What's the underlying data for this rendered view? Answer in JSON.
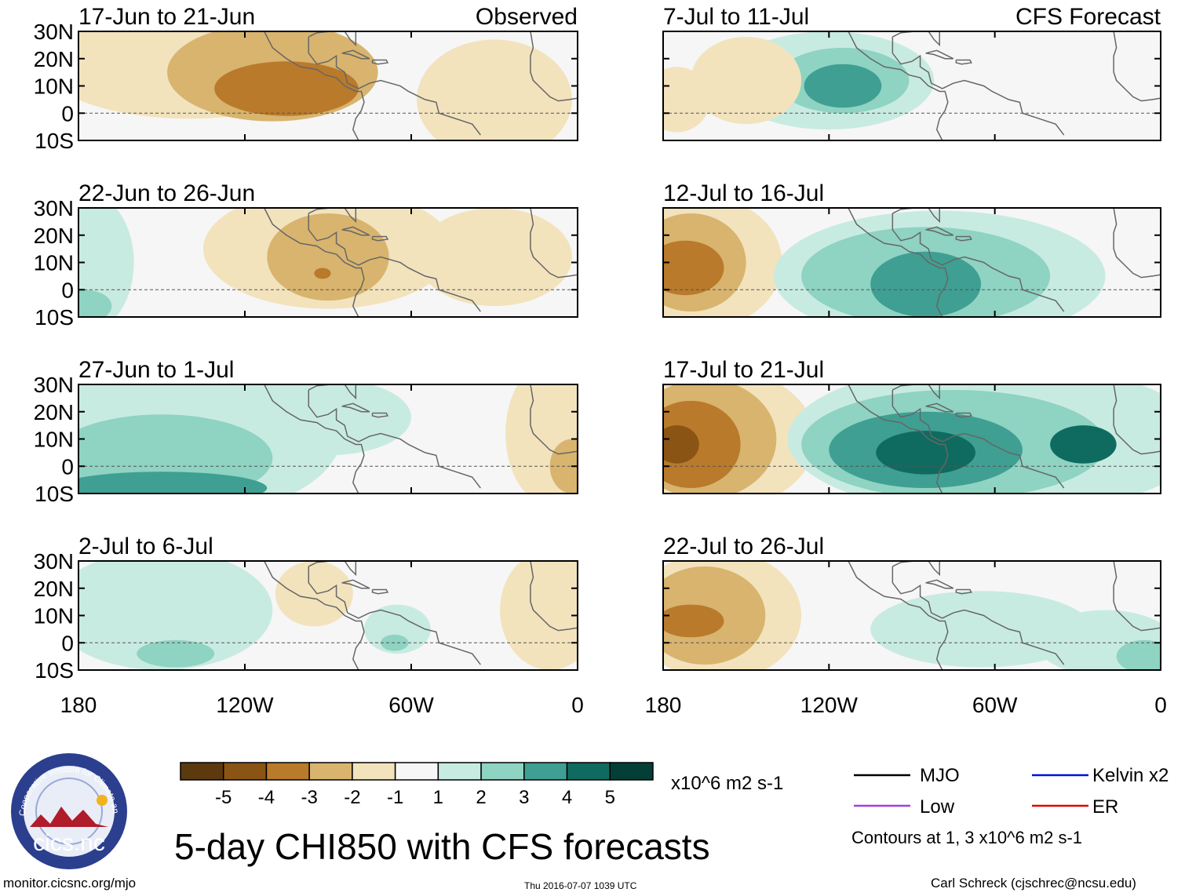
{
  "chart_data": {
    "type": "heatmap",
    "title": "5-day CHI850 with CFS forecasts",
    "variable": "CHI850",
    "units": "x10^6 m2 s-1",
    "lat_ticks": [
      "30N",
      "20N",
      "10N",
      "0",
      "10S"
    ],
    "lon_ticks": [
      "180",
      "120W",
      "60W",
      "0"
    ],
    "lat_range": [
      -10,
      30
    ],
    "lon_range": [
      -180,
      0
    ],
    "colorbar": {
      "levels": [
        -5,
        -4,
        -3,
        -2,
        -1,
        1,
        2,
        3,
        4,
        5
      ],
      "level_labels": [
        "-5",
        "-4",
        "-3",
        "-2",
        "-1",
        "1",
        "2",
        "3",
        "4",
        "5"
      ],
      "colors": [
        "#5c3a0e",
        "#8a5414",
        "#b97a2b",
        "#d8b46e",
        "#f2e3bd",
        "#f6f6f6",
        "#c8ebe1",
        "#8fd3c2",
        "#3f9f92",
        "#0f6b60",
        "#033f37"
      ]
    },
    "contours": {
      "note": "Contours at 1, 3 x10^6 m2 s-1",
      "legend": [
        {
          "label": "MJO",
          "color": "#000000"
        },
        {
          "label": "Kelvin x2",
          "color": "#0010e0"
        },
        {
          "label": "Low",
          "color": "#a040e0"
        },
        {
          "label": "ER",
          "color": "#e00000"
        }
      ]
    },
    "panels": [
      {
        "label": "17-Jun to 21-Jun",
        "tag": "Observed",
        "blobs": [
          {
            "lon": -140,
            "lat": 20,
            "rlon": 55,
            "rlat": 22,
            "v": -1
          },
          {
            "lon": -110,
            "lat": 15,
            "rlon": 38,
            "rlat": 18,
            "v": -2
          },
          {
            "lon": -105,
            "lat": 9,
            "rlon": 26,
            "rlat": 10,
            "v": -3
          },
          {
            "lon": -95,
            "lat": 25,
            "rlon": 12,
            "rlat": 6,
            "v": -2
          },
          {
            "lon": -30,
            "lat": 5,
            "rlon": 28,
            "rlat": 22,
            "v": -1
          }
        ]
      },
      {
        "label": "22-Jun to 26-Jun",
        "blobs": [
          {
            "lon": -90,
            "lat": 15,
            "rlon": 45,
            "rlat": 22,
            "v": -1
          },
          {
            "lon": -90,
            "lat": 12,
            "rlon": 22,
            "rlat": 16,
            "v": -2
          },
          {
            "lon": -92,
            "lat": 6,
            "rlon": 3,
            "rlat": 2,
            "v": -3
          },
          {
            "lon": -30,
            "lat": 12,
            "rlon": 28,
            "rlat": 18,
            "v": -1
          },
          {
            "lon": -178,
            "lat": 10,
            "rlon": 18,
            "rlat": 26,
            "v": 1
          },
          {
            "lon": -178,
            "lat": -6,
            "rlon": 10,
            "rlat": 6,
            "v": 2
          }
        ]
      },
      {
        "label": "27-Jun to 1-Jul",
        "blobs": [
          {
            "lon": -140,
            "lat": 12,
            "rlon": 55,
            "rlat": 30,
            "v": 1
          },
          {
            "lon": -90,
            "lat": 18,
            "rlon": 30,
            "rlat": 14,
            "v": 1
          },
          {
            "lon": -150,
            "lat": 3,
            "rlon": 40,
            "rlat": 16,
            "v": 2
          },
          {
            "lon": -150,
            "lat": -8,
            "rlon": 38,
            "rlat": 6,
            "v": 3
          },
          {
            "lon": -10,
            "lat": 12,
            "rlon": 16,
            "rlat": 26,
            "v": -1
          },
          {
            "lon": -2,
            "lat": 0,
            "rlon": 8,
            "rlat": 10,
            "v": -2
          }
        ]
      },
      {
        "label": "2-Jul to 6-Jul",
        "blobs": [
          {
            "lon": -150,
            "lat": 12,
            "rlon": 40,
            "rlat": 22,
            "v": 1
          },
          {
            "lon": -145,
            "lat": -4,
            "rlon": 14,
            "rlat": 5,
            "v": 2
          },
          {
            "lon": -95,
            "lat": 18,
            "rlon": 14,
            "rlat": 12,
            "v": -1
          },
          {
            "lon": -65,
            "lat": 5,
            "rlon": 12,
            "rlat": 9,
            "v": 1
          },
          {
            "lon": -66,
            "lat": 0,
            "rlon": 5,
            "rlat": 3,
            "v": 2
          },
          {
            "lon": -10,
            "lat": 12,
            "rlon": 18,
            "rlat": 22,
            "v": -1
          }
        ]
      },
      {
        "label": "7-Jul to 11-Jul",
        "tag": "CFS Forecast",
        "blobs": [
          {
            "lon": -175,
            "lat": 5,
            "rlon": 12,
            "rlat": 12,
            "v": -1
          },
          {
            "lon": -120,
            "lat": 12,
            "rlon": 38,
            "rlat": 18,
            "v": 1
          },
          {
            "lon": -115,
            "lat": 12,
            "rlon": 24,
            "rlat": 12,
            "v": 2
          },
          {
            "lon": -115,
            "lat": 10,
            "rlon": 14,
            "rlat": 8,
            "v": 3
          },
          {
            "lon": -150,
            "lat": 12,
            "rlon": 20,
            "rlat": 16,
            "v": -1
          }
        ]
      },
      {
        "label": "12-Jul to 16-Jul",
        "blobs": [
          {
            "lon": -165,
            "lat": 10,
            "rlon": 28,
            "rlat": 24,
            "v": -1
          },
          {
            "lon": -170,
            "lat": 10,
            "rlon": 20,
            "rlat": 18,
            "v": -2
          },
          {
            "lon": -172,
            "lat": 8,
            "rlon": 14,
            "rlat": 10,
            "v": -3
          },
          {
            "lon": -80,
            "lat": 5,
            "rlon": 60,
            "rlat": 24,
            "v": 1
          },
          {
            "lon": -85,
            "lat": 5,
            "rlon": 45,
            "rlat": 18,
            "v": 2
          },
          {
            "lon": -85,
            "lat": 2,
            "rlon": 20,
            "rlat": 12,
            "v": 3
          }
        ]
      },
      {
        "label": "17-Jul to 21-Jul",
        "blobs": [
          {
            "lon": -160,
            "lat": 10,
            "rlon": 35,
            "rlat": 26,
            "v": -1
          },
          {
            "lon": -165,
            "lat": 10,
            "rlon": 26,
            "rlat": 22,
            "v": -2
          },
          {
            "lon": -170,
            "lat": 8,
            "rlon": 18,
            "rlat": 16,
            "v": -3
          },
          {
            "lon": -175,
            "lat": 8,
            "rlon": 8,
            "rlat": 7,
            "v": -4
          },
          {
            "lon": -60,
            "lat": 10,
            "rlon": 75,
            "rlat": 28,
            "v": 1
          },
          {
            "lon": -75,
            "lat": 8,
            "rlon": 55,
            "rlat": 20,
            "v": 2
          },
          {
            "lon": -85,
            "lat": 6,
            "rlon": 35,
            "rlat": 14,
            "v": 3
          },
          {
            "lon": -85,
            "lat": 5,
            "rlon": 18,
            "rlat": 8,
            "v": 4
          },
          {
            "lon": -28,
            "lat": 8,
            "rlon": 12,
            "rlat": 7,
            "v": 4
          }
        ]
      },
      {
        "label": "22-Jul to 26-Jul",
        "blobs": [
          {
            "lon": -160,
            "lat": 10,
            "rlon": 30,
            "rlat": 24,
            "v": -1
          },
          {
            "lon": -165,
            "lat": 10,
            "rlon": 22,
            "rlat": 18,
            "v": -2
          },
          {
            "lon": -170,
            "lat": 8,
            "rlon": 12,
            "rlat": 6,
            "v": -3
          },
          {
            "lon": -65,
            "lat": 5,
            "rlon": 40,
            "rlat": 14,
            "v": 1
          },
          {
            "lon": -20,
            "lat": 0,
            "rlon": 25,
            "rlat": 12,
            "v": 1
          },
          {
            "lon": -6,
            "lat": -5,
            "rlon": 10,
            "rlat": 6,
            "v": 2
          }
        ]
      }
    ]
  },
  "title": "5-day CHI850 with CFS forecasts",
  "units": "x10^6 m2 s-1",
  "legend": {
    "mjo": "MJO",
    "kelvin": "Kelvin x2",
    "low": "Low",
    "er": "ER"
  },
  "contour_note": "Contours at 1, 3 x10^6 m2 s-1",
  "footer": {
    "url": "monitor.cicsnc.org/mjo",
    "timestamp": "Thu 2016-07-07 1039 UTC",
    "author": "Carl Schreck (cjschrec@ncsu.edu)"
  },
  "logo": {
    "text": "cics.nc",
    "ring_text": "Cooperative Institute for Climate and Satellites"
  }
}
